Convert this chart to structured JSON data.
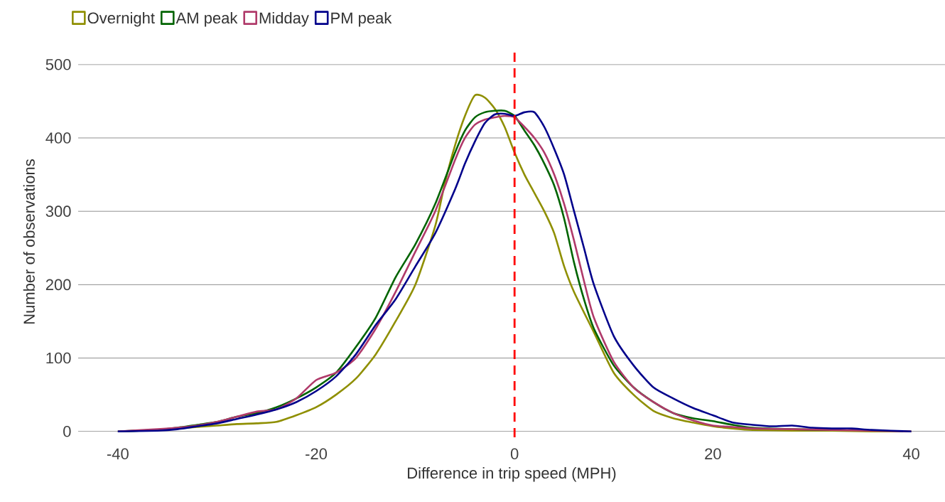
{
  "chart_data": {
    "type": "line",
    "xlabel": "Difference in trip speed (MPH)",
    "ylabel": "Number of observations",
    "xlim": [
      -44,
      43.4
    ],
    "ylim": [
      -8,
      525
    ],
    "xticks": [
      -40,
      -20,
      0,
      20,
      40
    ],
    "yticks": [
      0,
      100,
      200,
      300,
      400,
      500
    ],
    "grid": "y",
    "legend": "top left",
    "line_style": "solid",
    "ref_lines": [
      {
        "axis": "x",
        "value": 0,
        "color": "#ff0000",
        "line_style": "dashed"
      }
    ],
    "series": [
      {
        "name": "Overnight",
        "color": "#8f8f00",
        "x": [
          -34,
          -32,
          -30,
          -28,
          -26,
          -24,
          -22,
          -20,
          -18,
          -16,
          -14,
          -12,
          -10,
          -8,
          -7,
          -6,
          -5,
          -4,
          -3,
          -2,
          -1,
          0,
          1,
          2,
          3,
          4,
          5,
          6,
          8,
          10,
          12,
          14,
          16,
          18,
          20,
          22,
          24,
          28,
          32,
          36,
          40
        ],
        "values": [
          4,
          6,
          8,
          10,
          11,
          13,
          22,
          33,
          50,
          72,
          105,
          150,
          200,
          280,
          340,
          390,
          430,
          458,
          455,
          440,
          415,
          380,
          350,
          325,
          300,
          270,
          225,
          190,
          135,
          80,
          50,
          28,
          18,
          12,
          7,
          4,
          2,
          1,
          1,
          0,
          0
        ]
      },
      {
        "name": "AM peak",
        "color": "#006400",
        "x": [
          -40,
          -36,
          -34,
          -32,
          -30,
          -28,
          -26,
          -24,
          -22,
          -20,
          -18,
          -16,
          -14,
          -12,
          -10,
          -8,
          -6,
          -5,
          -4,
          -3,
          -2,
          -1,
          0,
          1,
          2,
          3,
          4,
          5,
          6,
          7,
          8,
          10,
          12,
          14,
          16,
          18,
          20,
          22,
          24,
          28,
          32
        ],
        "values": [
          0,
          2,
          5,
          9,
          13,
          20,
          25,
          33,
          45,
          60,
          80,
          115,
          155,
          210,
          255,
          310,
          380,
          410,
          428,
          435,
          437,
          437,
          430,
          410,
          390,
          365,
          335,
          290,
          230,
          180,
          140,
          90,
          60,
          40,
          25,
          18,
          14,
          9,
          5,
          3,
          2
        ]
      },
      {
        "name": "Midday",
        "color": "#b03a6a",
        "x": [
          -40,
          -36,
          -34,
          -32,
          -30,
          -28,
          -26,
          -24,
          -22,
          -20,
          -18,
          -16,
          -14,
          -12,
          -10,
          -8,
          -6,
          -5,
          -4,
          -3,
          -2,
          -1,
          0,
          1,
          2,
          3,
          4,
          5,
          6,
          7,
          8,
          10,
          12,
          14,
          16,
          18,
          20,
          22,
          24,
          28,
          32,
          36,
          40
        ],
        "values": [
          0,
          3,
          5,
          8,
          13,
          20,
          27,
          30,
          45,
          70,
          80,
          100,
          140,
          190,
          245,
          300,
          370,
          400,
          418,
          425,
          428,
          430,
          428,
          415,
          400,
          380,
          350,
          310,
          260,
          205,
          155,
          95,
          60,
          40,
          25,
          15,
          8,
          6,
          4,
          3,
          2,
          1,
          0
        ]
      },
      {
        "name": "PM peak",
        "color": "#00008b",
        "x": [
          -40,
          -36,
          -34,
          -32,
          -30,
          -28,
          -26,
          -24,
          -22,
          -20,
          -18,
          -16,
          -14,
          -12,
          -10,
          -8,
          -6,
          -5,
          -4,
          -3,
          -2,
          -1,
          0,
          1,
          2,
          3,
          4,
          5,
          6,
          7,
          8,
          10,
          12,
          14,
          16,
          18,
          20,
          22,
          24,
          26,
          28,
          30,
          32,
          34,
          36,
          40
        ],
        "values": [
          0,
          1,
          3,
          7,
          11,
          17,
          23,
          30,
          40,
          55,
          75,
          105,
          145,
          180,
          225,
          270,
          330,
          365,
          395,
          420,
          432,
          433,
          430,
          435,
          435,
          415,
          385,
          350,
          300,
          250,
          200,
          130,
          90,
          60,
          45,
          32,
          22,
          12,
          9,
          7,
          8,
          5,
          4,
          4,
          2,
          0
        ]
      }
    ]
  }
}
